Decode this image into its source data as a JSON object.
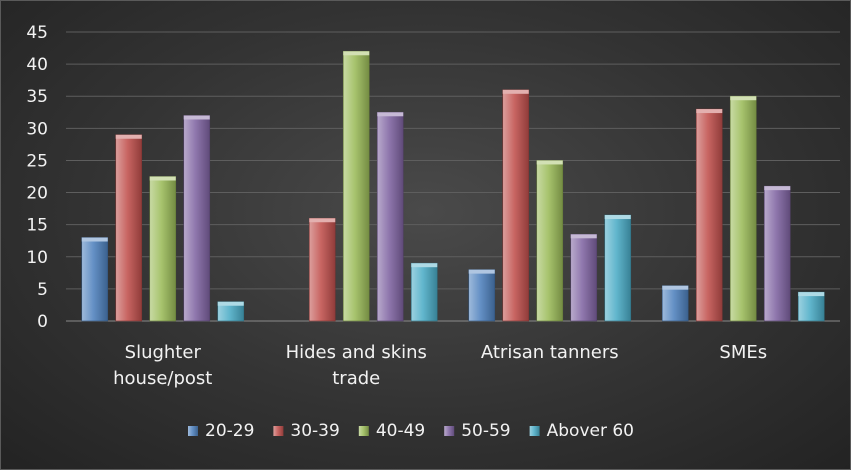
{
  "chart_data": {
    "type": "bar",
    "categories": [
      [
        "Slughter",
        "house/post"
      ],
      [
        "Hides and skins",
        "trade"
      ],
      [
        "Atrisan tanners"
      ],
      [
        "SMEs"
      ]
    ],
    "series": [
      {
        "name": "20-29",
        "color": "#4f81bd",
        "values": [
          13,
          0,
          8,
          5.5
        ]
      },
      {
        "name": "30-39",
        "color": "#c0504d",
        "values": [
          29,
          16,
          36,
          33
        ]
      },
      {
        "name": "40-49",
        "color": "#9bbb59",
        "values": [
          22.5,
          42,
          25,
          35
        ]
      },
      {
        "name": "50-59",
        "color": "#8064a2",
        "values": [
          32,
          32.5,
          13.5,
          21
        ]
      },
      {
        "name": "Abover 60",
        "color": "#4bacc6",
        "values": [
          3,
          9,
          16.5,
          4.5
        ]
      }
    ],
    "yticks": [
      "0",
      "5",
      "10",
      "15",
      "20",
      "25",
      "30",
      "35",
      "40",
      "45"
    ],
    "ylim": [
      0,
      45
    ],
    "grid": true,
    "legend": "bottom"
  }
}
